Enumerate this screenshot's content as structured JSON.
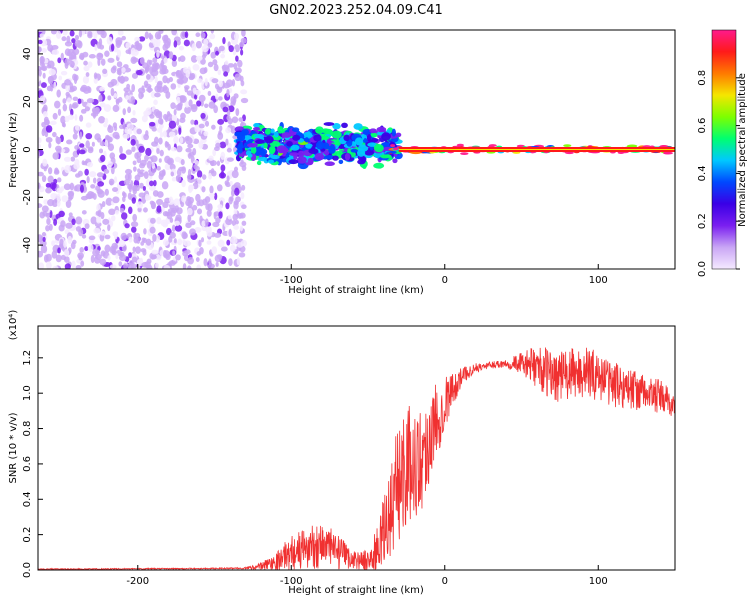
{
  "title": "GN02.2023.252.04.09.C41",
  "chart_data": [
    {
      "type": "heatmap",
      "xlabel": "Height of straight line (km)",
      "ylabel": "Frequency (Hz)",
      "xlim": [
        -265,
        150
      ],
      "ylim": [
        -50,
        50
      ],
      "x_ticks": [
        -200,
        -100,
        0,
        100
      ],
      "y_ticks": [
        -40,
        -20,
        0,
        20,
        40
      ],
      "colorbar": {
        "label": "Normalized spectral amplitude",
        "range": [
          0.0,
          1.0
        ],
        "ticks": [
          0.0,
          0.2,
          0.4,
          0.6,
          0.8
        ],
        "tick_labels": [
          "0.0",
          "0.2",
          "0.4",
          "0.6",
          "0.8"
        ],
        "colors": [
          "#f5eaff",
          "#c9a6f5",
          "#7a1ff0",
          "#3a00e6",
          "#0048ff",
          "#00c8ff",
          "#00ff70",
          "#7dff00",
          "#f5e600",
          "#ff7a00",
          "#ff1a1a",
          "#ff1a8c"
        ]
      },
      "regions": [
        {
          "x_from": -265,
          "x_to": -130,
          "freq_spread": 50,
          "amplitude": 0.15
        },
        {
          "x_from": -135,
          "x_to": -30,
          "freq_spread": 10,
          "amplitude": 0.45
        },
        {
          "x_from": -35,
          "x_to": 150,
          "freq_spread": 2,
          "amplitude": 0.9
        }
      ]
    },
    {
      "type": "line",
      "xlabel": "Height of straight line (km)",
      "ylabel": "SNR (10 * v/v)",
      "y_multiplier": "(x10⁴)",
      "xlim": [
        -265,
        150
      ],
      "ylim": [
        0,
        1.38
      ],
      "x_ticks": [
        -200,
        -100,
        0,
        100
      ],
      "y_ticks": [
        0.0,
        0.2,
        0.4,
        0.6,
        0.8,
        1.0,
        1.2
      ],
      "y_tick_labels": [
        "0.0",
        "0.2",
        "0.4",
        "0.6",
        "0.8",
        "1.0",
        "1.2"
      ],
      "color": "#f03030",
      "x": [
        -265,
        -240,
        -200,
        -160,
        -130,
        -120,
        -110,
        -100,
        -90,
        -80,
        -70,
        -60,
        -50,
        -45,
        -40,
        -35,
        -30,
        -25,
        -20,
        -15,
        -10,
        -5,
        0,
        5,
        10,
        15,
        20,
        25,
        30,
        40,
        50,
        60,
        70,
        80,
        90,
        100,
        110,
        120,
        130,
        140,
        150
      ],
      "y": [
        0.005,
        0.005,
        0.007,
        0.008,
        0.01,
        0.02,
        0.05,
        0.1,
        0.12,
        0.15,
        0.1,
        0.06,
        0.05,
        0.1,
        0.2,
        0.35,
        0.5,
        0.6,
        0.6,
        0.62,
        0.75,
        0.85,
        0.95,
        1.02,
        1.08,
        1.12,
        1.14,
        1.15,
        1.16,
        1.17,
        1.17,
        1.15,
        1.1,
        1.1,
        1.12,
        1.1,
        1.05,
        1.03,
        1.0,
        0.98,
        0.93
      ],
      "noise": [
        0.003,
        0.003,
        0.003,
        0.003,
        0.004,
        0.02,
        0.05,
        0.1,
        0.12,
        0.14,
        0.1,
        0.05,
        0.06,
        0.12,
        0.2,
        0.28,
        0.35,
        0.35,
        0.3,
        0.3,
        0.28,
        0.22,
        0.15,
        0.1,
        0.06,
        0.04,
        0.03,
        0.02,
        0.02,
        0.03,
        0.06,
        0.12,
        0.15,
        0.15,
        0.15,
        0.14,
        0.13,
        0.12,
        0.1,
        0.1,
        0.08
      ]
    }
  ]
}
